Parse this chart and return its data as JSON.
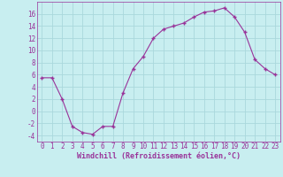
{
  "x": [
    0,
    1,
    2,
    3,
    4,
    5,
    6,
    7,
    8,
    9,
    10,
    11,
    12,
    13,
    14,
    15,
    16,
    17,
    18,
    19,
    20,
    21,
    22,
    23
  ],
  "y": [
    5.5,
    5.5,
    2.0,
    -2.5,
    -3.5,
    -3.8,
    -2.5,
    -2.5,
    3.0,
    7.0,
    9.0,
    12.0,
    13.5,
    14.0,
    14.5,
    15.5,
    16.3,
    16.5,
    17.0,
    15.5,
    13.0,
    8.5,
    7.0,
    6.0
  ],
  "line_color": "#993399",
  "marker": "+",
  "background_color": "#c8eef0",
  "grid_color": "#aad8dc",
  "xlabel": "Windchill (Refroidissement éolien,°C)",
  "xlabel_color": "#993399",
  "tick_color": "#993399",
  "ylim": [
    -5,
    18
  ],
  "yticks": [
    -4,
    -2,
    0,
    2,
    4,
    6,
    8,
    10,
    12,
    14,
    16
  ],
  "xlim": [
    -0.5,
    23.5
  ],
  "tick_fontsize": 5.5,
  "xlabel_fontsize": 6.0
}
